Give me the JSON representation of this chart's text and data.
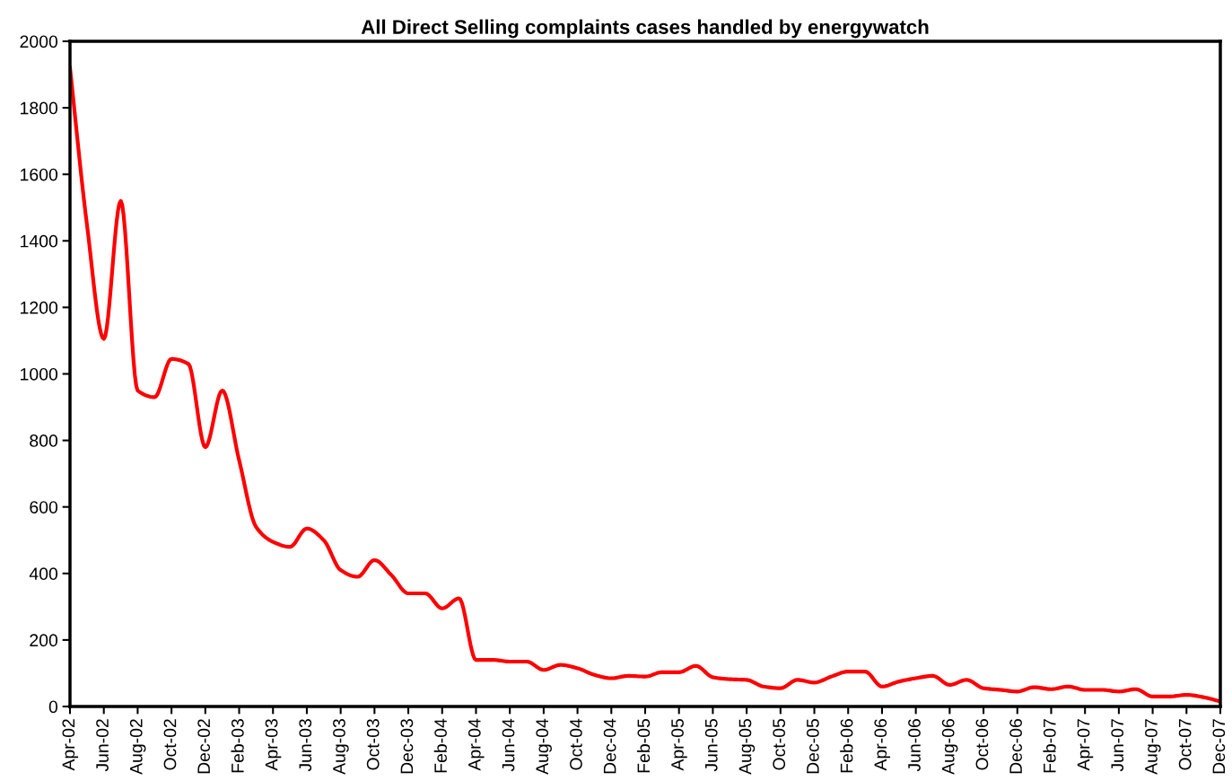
{
  "chart_data": {
    "type": "line",
    "title": "All Direct Selling complaints cases handled by energywatch",
    "categories": [
      "Apr-02",
      null,
      "Jun-02",
      null,
      "Aug-02",
      null,
      "Oct-02",
      null,
      "Dec-02",
      null,
      "Feb-03",
      null,
      "Apr-03",
      null,
      "Jun-03",
      null,
      "Aug-03",
      null,
      "Oct-03",
      null,
      "Dec-03",
      null,
      "Feb-04",
      null,
      "Apr-04",
      null,
      "Jun-04",
      null,
      "Aug-04",
      null,
      "Oct-04",
      null,
      "Dec-04",
      null,
      "Feb-05",
      null,
      "Apr-05",
      null,
      "Jun-05",
      null,
      "Aug-05",
      null,
      "Oct-05",
      null,
      "Dec-05",
      null,
      "Feb-06",
      null,
      "Apr-06",
      null,
      "Jun-06",
      null,
      "Aug-06",
      null,
      "Oct-06",
      null,
      "Dec-06",
      null,
      "Feb-07",
      null,
      "Apr-07",
      null,
      "Jun-07",
      null,
      "Aug-07",
      null,
      "Oct-07",
      null,
      "Dec-07"
    ],
    "series": [
      {
        "color": "#ff0000",
        "values": [
          1920,
          1450,
          1105,
          1520,
          950,
          930,
          1045,
          1030,
          780,
          950,
          740,
          540,
          495,
          480,
          535,
          500,
          410,
          390,
          440,
          395,
          340,
          340,
          295,
          325,
          140,
          140,
          135,
          135,
          110,
          125,
          115,
          95,
          85,
          92,
          90,
          103,
          103,
          122,
          88,
          82,
          80,
          60,
          55,
          80,
          72,
          90,
          105,
          105,
          60,
          75,
          85,
          92,
          65,
          80,
          55,
          50,
          45,
          58,
          52,
          60,
          50,
          50,
          45,
          52,
          30,
          30,
          35,
          28,
          15
        ]
      }
    ],
    "ylim": [
      0,
      2000
    ],
    "yticks": [
      0,
      200,
      400,
      600,
      800,
      1000,
      1200,
      1400,
      1600,
      1800,
      2000
    ],
    "grid": false,
    "marker": "none",
    "line_style": "solid"
  }
}
